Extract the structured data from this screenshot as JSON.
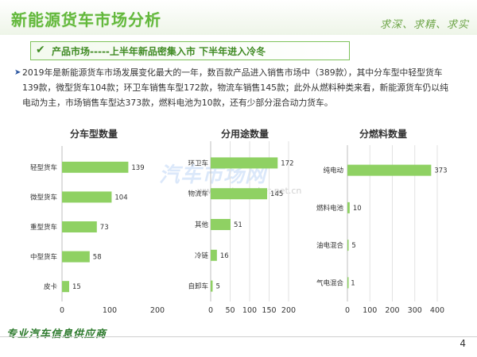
{
  "slide": {
    "title": "新能源货车市场分析",
    "motto": "求深、求精、求实",
    "subtitle": "产品市场-----上半年新品密集入市  下半年进入冷冬",
    "paragraph": "2019年是新能源货车市场发展变化最大的一年，数百款产品进入销售市场中（389款），其中分车型中轻型货车139款，微型货车104款；环卫车销售车型172款，物流车销售145款；此外从燃料种类来看，新能源货车仍以纯电动为主，市场销售车型达373款，燃料电池为10款，还有少部分混合动力货车。",
    "watermark": "汽车市场网",
    "watermark_url": "www.automarket.net.cn",
    "footer_slogan": "专业汽车信息供应商",
    "page_number": "4",
    "colors": {
      "accent": "#63b83c",
      "bar": "#8fd163",
      "title_green": "#63b83c",
      "slogan": "#2c7a2c"
    }
  },
  "chart_data": [
    {
      "type": "bar",
      "orientation": "horizontal",
      "title": "分车型数量",
      "categories": [
        "轻型货车",
        "微型货车",
        "重型货车",
        "中型货车",
        "皮卡"
      ],
      "values": [
        139,
        104,
        73,
        58,
        15
      ],
      "xlim": [
        0,
        200
      ],
      "xticks": [
        0,
        100,
        200
      ],
      "grid": false
    },
    {
      "type": "bar",
      "orientation": "horizontal",
      "title": "分用途数量",
      "categories": [
        "环卫车",
        "物流车",
        "其他",
        "冷链",
        "自卸车"
      ],
      "values": [
        172,
        145,
        51,
        16,
        5
      ],
      "xlim": [
        0,
        200
      ],
      "xticks": [
        0,
        50,
        100,
        150,
        200
      ],
      "grid": true
    },
    {
      "type": "bar",
      "orientation": "horizontal",
      "title": "分燃料数量",
      "categories": [
        "纯电动",
        "燃料电池",
        "油电混合",
        "气电混合"
      ],
      "values": [
        373,
        10,
        5,
        1
      ],
      "xlim": [
        0,
        400
      ],
      "xticks": [
        0,
        100,
        200,
        300,
        400
      ],
      "grid": true
    }
  ]
}
